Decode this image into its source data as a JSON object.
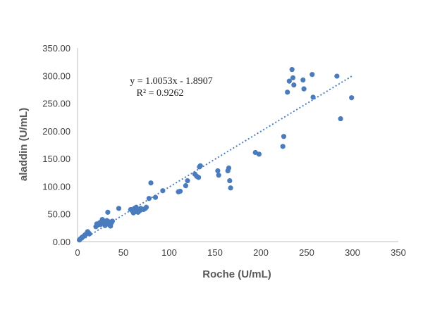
{
  "chart_data": {
    "type": "scatter",
    "title": "",
    "xlabel": "Roche (U/mL)",
    "ylabel": "aladdin (U/mL)",
    "xlim": [
      0,
      350
    ],
    "ylim": [
      0,
      350
    ],
    "x_ticks": [
      "0",
      "50",
      "100",
      "150",
      "200",
      "250",
      "300",
      "350"
    ],
    "y_ticks": [
      "0.00",
      "50.00",
      "100.00",
      "150.00",
      "200.00",
      "250.00",
      "300.00",
      "350.00"
    ],
    "grid": false,
    "legend": "none",
    "annotations": {
      "equation": "y = 1.0053x - 1.8907",
      "r_squared": "R² = 0.9262"
    },
    "trendline": {
      "slope": 1.0053,
      "intercept": -1.8907,
      "x_range": [
        2,
        300
      ],
      "style": "dotted",
      "color": "#4a7fc1"
    },
    "marker_color": "#4a7bbd",
    "series": [
      {
        "points": [
          [
            2,
            3
          ],
          [
            3,
            5
          ],
          [
            4,
            6
          ],
          [
            5,
            8
          ],
          [
            6,
            9
          ],
          [
            7,
            10
          ],
          [
            8,
            12
          ],
          [
            9,
            13
          ],
          [
            10,
            15
          ],
          [
            11,
            18
          ],
          [
            12,
            16
          ],
          [
            13,
            14
          ],
          [
            20,
            27
          ],
          [
            21,
            32
          ],
          [
            22,
            30
          ],
          [
            24,
            34
          ],
          [
            25,
            31
          ],
          [
            26,
            36
          ],
          [
            27,
            40
          ],
          [
            28,
            38
          ],
          [
            29,
            32
          ],
          [
            30,
            29
          ],
          [
            31,
            34
          ],
          [
            32,
            38
          ],
          [
            33,
            53
          ],
          [
            34,
            36
          ],
          [
            35,
            30
          ],
          [
            36,
            28
          ],
          [
            37,
            34
          ],
          [
            38,
            37
          ],
          [
            45,
            60
          ],
          [
            58,
            58
          ],
          [
            60,
            55
          ],
          [
            61,
            52
          ],
          [
            62,
            60
          ],
          [
            63,
            54
          ],
          [
            64,
            62
          ],
          [
            65,
            57
          ],
          [
            66,
            53
          ],
          [
            67,
            58
          ],
          [
            68,
            56
          ],
          [
            69,
            60
          ],
          [
            72,
            58
          ],
          [
            74,
            60
          ],
          [
            75,
            62
          ],
          [
            78,
            78
          ],
          [
            80,
            106
          ],
          [
            85,
            80
          ],
          [
            93,
            92
          ],
          [
            110,
            90
          ],
          [
            112,
            91
          ],
          [
            118,
            101
          ],
          [
            120,
            110
          ],
          [
            128,
            122
          ],
          [
            130,
            118
          ],
          [
            132,
            116
          ],
          [
            133,
            135
          ],
          [
            134,
            137
          ],
          [
            153,
            128
          ],
          [
            154,
            120
          ],
          [
            164,
            128
          ],
          [
            165,
            133
          ],
          [
            166,
            110
          ],
          [
            167,
            97
          ],
          [
            194,
            161
          ],
          [
            198,
            158
          ],
          [
            224,
            172
          ],
          [
            225,
            190
          ],
          [
            229,
            270
          ],
          [
            231,
            290
          ],
          [
            234,
            311
          ],
          [
            235,
            296
          ],
          [
            236,
            283
          ],
          [
            246,
            292
          ],
          [
            247,
            276
          ],
          [
            256,
            302
          ],
          [
            257,
            261
          ],
          [
            283,
            299
          ],
          [
            287,
            222
          ],
          [
            299,
            260
          ]
        ]
      }
    ]
  }
}
